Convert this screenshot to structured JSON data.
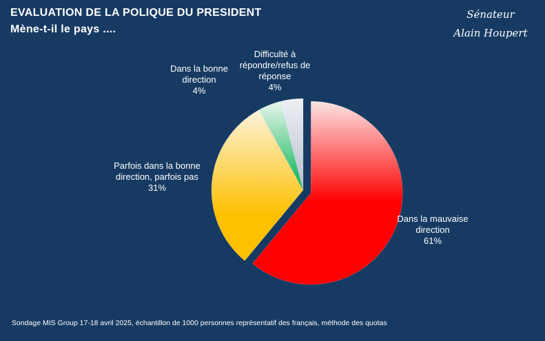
{
  "header": {
    "title": "EVALUATION DE LA POLIQUE DU PRESIDENT",
    "subtitle": "Mène-t-il le pays ...."
  },
  "signature": {
    "line1": "Sénateur",
    "line2": "Alain Houpert"
  },
  "footer": {
    "source": "Sondage MIS Group 17-18 avril 2025, échantillon de 1000 personnes représentatif des français, méthode des quotas"
  },
  "colors": {
    "background": "#173a63",
    "mauvaise": "#ff0000",
    "parfois": "#ffc000",
    "bonne": "#00b050",
    "difficulte": "#c8d0da"
  },
  "chart_data": {
    "type": "pie",
    "title": "EVALUATION DE LA POLIQUE DU PRESIDENT",
    "subtitle": "Mène-t-il le pays ....",
    "slices": [
      {
        "label": "Dans la mauvaise direction",
        "value": 61,
        "value_label": "61%",
        "color": "#ff0000"
      },
      {
        "label": "Parfois dans la bonne direction, parfois pas",
        "value": 31,
        "value_label": "31%",
        "color": "#ffc000"
      },
      {
        "label": "Dans la bonne direction",
        "value": 4,
        "value_label": "4%",
        "color": "#00b050"
      },
      {
        "label": "Difficulté à répondre/refus de réponse",
        "value": 4,
        "value_label": "4%",
        "color": "#c8d0da"
      }
    ],
    "label_lines": [
      [
        "Dans la mauvaise",
        "direction",
        "61%"
      ],
      [
        "Parfois dans la bonne",
        "direction, parfois pas",
        "31%"
      ],
      [
        "Dans la bonne",
        "direction",
        "4%"
      ],
      [
        "Difficulté à",
        "répondre/refus de",
        "réponse",
        "4%"
      ]
    ],
    "start": "12 o'clock",
    "direction": "clockwise",
    "exploded_slice": "Dans la mauvaise direction",
    "legend": "none"
  }
}
